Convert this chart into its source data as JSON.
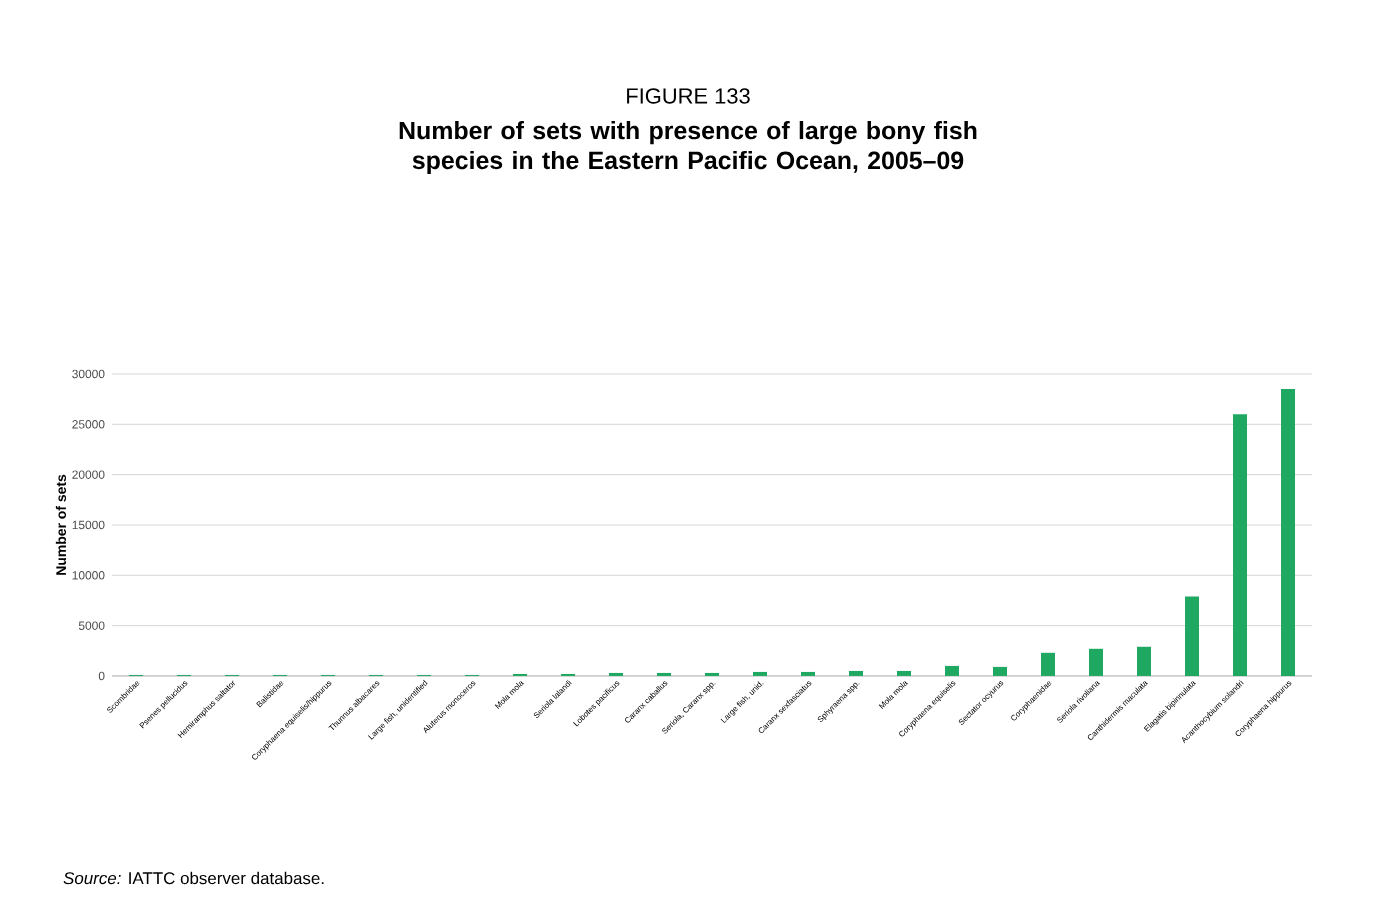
{
  "chart_data": {
    "type": "bar",
    "title": "FIGURE 133",
    "subtitle": "Number of sets with presence of large bony fish species in the Eastern Pacific Ocean, 2005–09",
    "ylabel": "Number of sets",
    "categories": [
      "Scombridae",
      "Psenes pellucidus",
      "Hemiramphus saltator",
      "Balistidae",
      "Coryphaena equiselis/hippurus",
      "Thunnus albacares",
      "Large fish, unidentified",
      "Aluterus monoceros",
      "Mola mola",
      "Seriola lalandi",
      "Lobotes pacificus",
      "Caranx caballus",
      "Seriola, Caranx spp.",
      "Large fish, unid.",
      "Caranx sexfasciatus",
      "Sphyraena spp.",
      "Mola mola",
      "Coryphaena equiselis",
      "Sectator ocyurus",
      "Coryphaenidae",
      "Seriola rivoliana",
      "Canthidermis maculata",
      "Elagatis bipinnulata",
      "Acanthocybium solandri",
      "Coryphaena hippurus"
    ],
    "values": [
      100,
      100,
      100,
      100,
      100,
      100,
      100,
      100,
      200,
      200,
      300,
      300,
      300,
      400,
      400,
      500,
      500,
      1000,
      900,
      2300,
      2700,
      2900,
      7900,
      26000,
      28500
    ],
    "color": "#1fa862",
    "ylim": [
      0,
      30000
    ],
    "yticks": [
      0,
      5000,
      10000,
      15000,
      20000,
      25000,
      30000
    ],
    "grid": "y",
    "annotations": [
      "*Source:* IATTC observer database."
    ]
  }
}
